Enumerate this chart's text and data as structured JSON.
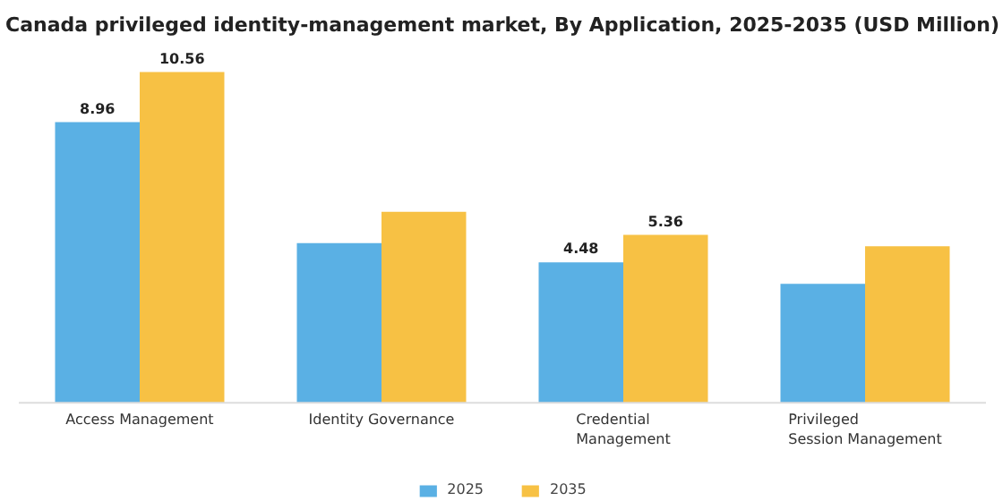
{
  "chart_data": {
    "type": "bar",
    "title": "Canada privileged identity-management market, By Application, 2025-2035 (USD Million)",
    "categories": [
      "Access Management",
      "Identity Governance",
      "Credential Management",
      "Privileged Session Management"
    ],
    "series": [
      {
        "name": "2025",
        "color": "#5ab0e4",
        "values": [
          8.96,
          5.1,
          4.48,
          3.8
        ],
        "value_labels": [
          "8.96",
          null,
          "4.48",
          null
        ]
      },
      {
        "name": "2035",
        "color": "#f7c144",
        "values": [
          10.56,
          6.1,
          5.36,
          5.0
        ],
        "value_labels": [
          "10.56",
          null,
          "5.36",
          null
        ]
      }
    ],
    "legend": "bottom"
  }
}
